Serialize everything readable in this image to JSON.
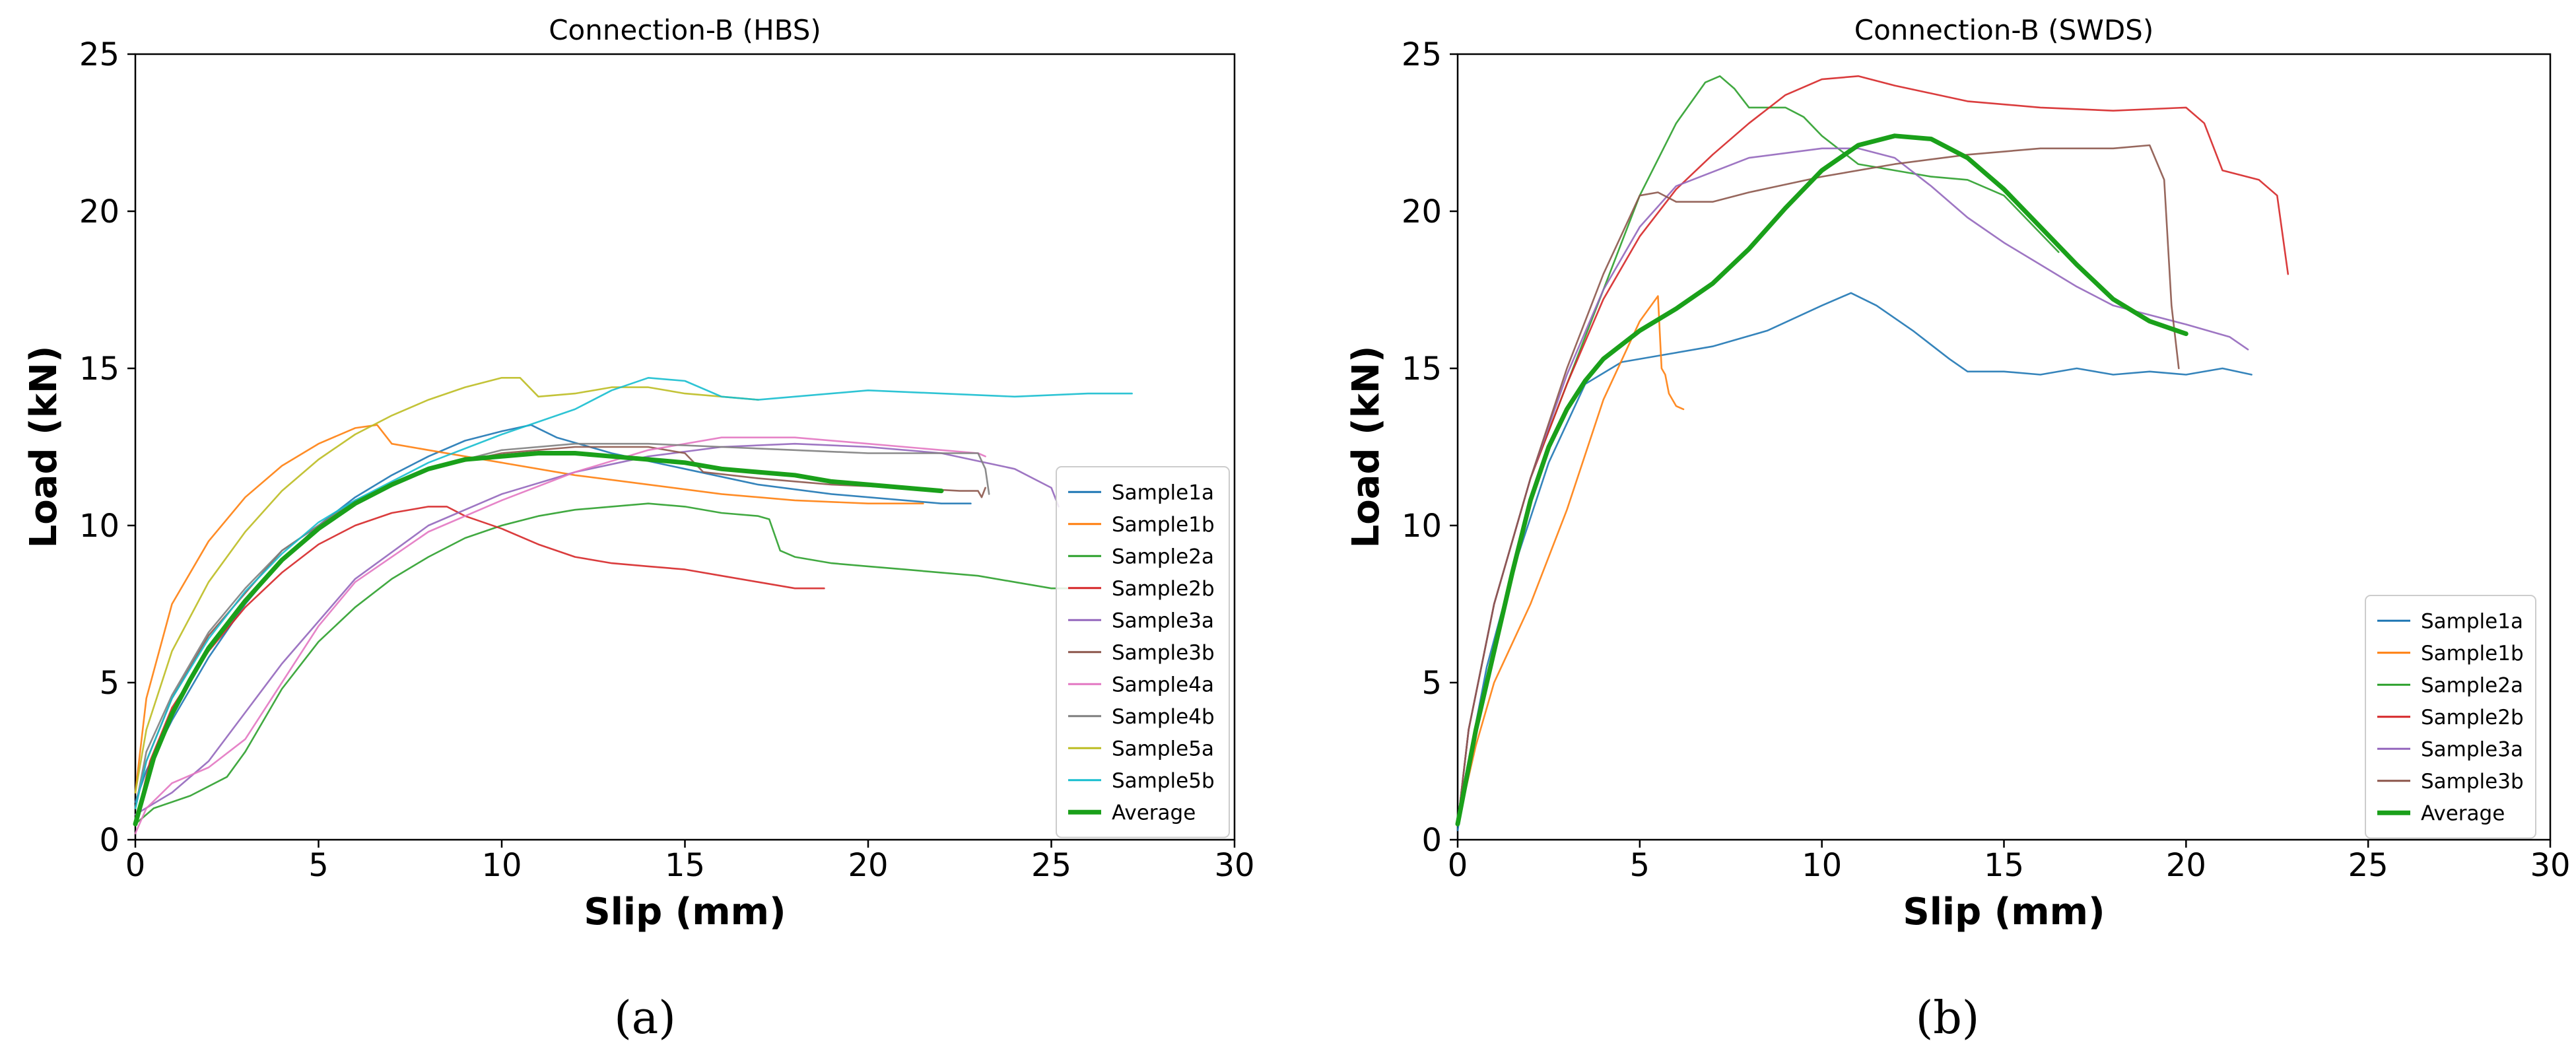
{
  "chart_data": [
    {
      "type": "line",
      "title": "Connection-B (HBS)",
      "xlabel": "Slip (mm)",
      "ylabel": "Load (kN)",
      "xlim": [
        0,
        30
      ],
      "ylim": [
        0,
        25
      ],
      "xticks": [
        "0",
        "5",
        "10",
        "15",
        "20",
        "25",
        "30"
      ],
      "yticks": [
        "0",
        "5",
        "10",
        "15",
        "20",
        "25"
      ],
      "grid": false,
      "legend_position": "right",
      "panel_label": "(a)",
      "series": [
        {
          "name": "Sample1a",
          "color": "#1f77b4",
          "x": [
            0,
            0.3,
            1,
            2,
            3,
            4,
            5,
            6,
            7,
            8,
            9,
            10,
            10.8,
            11.5,
            13,
            15,
            17,
            19,
            21,
            22,
            22.8
          ],
          "y": [
            1.2,
            2.2,
            3.8,
            5.8,
            7.5,
            8.9,
            10.0,
            10.9,
            11.6,
            12.2,
            12.7,
            13.0,
            13.2,
            12.8,
            12.3,
            11.8,
            11.3,
            11.0,
            10.8,
            10.7,
            10.7
          ]
        },
        {
          "name": "Sample1b",
          "color": "#ff7f0e",
          "x": [
            0,
            0.3,
            1,
            2,
            3,
            4,
            5,
            6,
            6.6,
            7.0,
            8,
            10,
            12,
            14,
            16,
            18,
            20,
            21.5
          ],
          "y": [
            1.5,
            4.5,
            7.5,
            9.5,
            10.9,
            11.9,
            12.6,
            13.1,
            13.2,
            12.6,
            12.4,
            12.0,
            11.6,
            11.3,
            11.0,
            10.8,
            10.7,
            10.7
          ]
        },
        {
          "name": "Sample2a",
          "color": "#2ca02c",
          "x": [
            0,
            0.5,
            1.5,
            2.5,
            3,
            4,
            5,
            6,
            7,
            8,
            9,
            10,
            11,
            12,
            13,
            14,
            15,
            16,
            17,
            17.3,
            17.6,
            18,
            19,
            20,
            21,
            22,
            23,
            24,
            25,
            25.5
          ],
          "y": [
            0.5,
            1.0,
            1.4,
            2.0,
            2.8,
            4.8,
            6.3,
            7.4,
            8.3,
            9.0,
            9.6,
            10.0,
            10.3,
            10.5,
            10.6,
            10.7,
            10.6,
            10.4,
            10.3,
            10.2,
            9.2,
            9.0,
            8.8,
            8.7,
            8.6,
            8.5,
            8.4,
            8.2,
            8.0,
            8.0
          ]
        },
        {
          "name": "Sample2b",
          "color": "#d62728",
          "x": [
            0,
            0.4,
            1,
            2,
            3,
            4,
            5,
            6,
            7,
            8,
            8.5,
            9,
            10,
            11,
            12,
            13,
            14,
            15,
            16,
            17,
            18,
            18.8
          ],
          "y": [
            0.5,
            2.5,
            4.2,
            6.0,
            7.4,
            8.5,
            9.4,
            10.0,
            10.4,
            10.6,
            10.6,
            10.3,
            9.9,
            9.4,
            9.0,
            8.8,
            8.7,
            8.6,
            8.4,
            8.2,
            8.0,
            8.0
          ]
        },
        {
          "name": "Sample3a",
          "color": "#9467bd",
          "x": [
            0,
            1,
            2,
            4,
            6,
            8,
            10,
            12,
            14,
            16,
            18,
            20,
            22,
            24,
            25,
            25.2
          ],
          "y": [
            0.8,
            1.5,
            2.5,
            5.6,
            8.3,
            10.0,
            11.0,
            11.7,
            12.2,
            12.5,
            12.6,
            12.5,
            12.3,
            11.8,
            11.2,
            10.6
          ]
        },
        {
          "name": "Sample3b",
          "color": "#8c564b",
          "x": [
            0,
            0.3,
            1,
            2,
            4,
            6,
            8,
            10,
            12,
            14,
            15,
            15.5,
            17,
            19,
            21,
            22.5,
            23,
            23.1,
            23.2
          ],
          "y": [
            1.0,
            2.5,
            4.5,
            6.5,
            9.2,
            10.8,
            11.8,
            12.3,
            12.5,
            12.5,
            12.3,
            11.7,
            11.5,
            11.3,
            11.2,
            11.1,
            11.1,
            10.9,
            11.2
          ]
        },
        {
          "name": "Sample4a",
          "color": "#e377c2",
          "x": [
            0,
            0.3,
            1,
            2,
            3,
            4,
            5,
            6,
            8,
            10,
            12,
            14,
            16,
            18,
            20,
            22,
            23,
            23.2
          ],
          "y": [
            0.2,
            1.0,
            1.8,
            2.3,
            3.2,
            5.0,
            6.8,
            8.2,
            9.8,
            10.8,
            11.7,
            12.4,
            12.8,
            12.8,
            12.6,
            12.4,
            12.3,
            12.2
          ]
        },
        {
          "name": "Sample4b",
          "color": "#7f7f7f",
          "x": [
            0,
            0.3,
            1,
            2,
            3,
            4,
            6,
            8,
            10,
            12,
            14,
            16,
            18,
            20,
            22,
            23,
            23.2,
            23.3
          ],
          "y": [
            1.0,
            2.8,
            4.6,
            6.6,
            8.0,
            9.2,
            10.8,
            11.8,
            12.4,
            12.6,
            12.6,
            12.5,
            12.4,
            12.3,
            12.3,
            12.3,
            11.8,
            11.0
          ]
        },
        {
          "name": "Sample5a",
          "color": "#bcbd22",
          "x": [
            0,
            0.3,
            1,
            2,
            3,
            4,
            5,
            6,
            7,
            8,
            9,
            10,
            10.5,
            11,
            12,
            13,
            14,
            15,
            16,
            17
          ],
          "y": [
            1.5,
            3.5,
            6.0,
            8.2,
            9.8,
            11.1,
            12.1,
            12.9,
            13.5,
            14.0,
            14.4,
            14.7,
            14.7,
            14.1,
            14.2,
            14.4,
            14.4,
            14.2,
            14.1,
            14.0
          ]
        },
        {
          "name": "Sample5b",
          "color": "#17becf",
          "x": [
            0,
            0.3,
            1,
            2,
            3,
            4,
            5,
            6,
            8,
            10,
            12,
            13,
            14,
            15,
            16,
            17,
            18,
            20,
            22,
            24,
            26,
            27.2
          ],
          "y": [
            1.0,
            2.5,
            4.5,
            6.4,
            7.9,
            9.1,
            10.1,
            10.8,
            12.0,
            12.9,
            13.7,
            14.3,
            14.7,
            14.6,
            14.1,
            14.0,
            14.1,
            14.3,
            14.2,
            14.1,
            14.2,
            14.2
          ]
        },
        {
          "name": "Average",
          "color": "#1aa01a",
          "bold": true,
          "x": [
            0,
            0.5,
            1,
            1.5,
            2,
            3,
            4,
            5,
            6,
            7,
            8,
            9,
            10,
            11,
            12,
            13,
            14,
            15,
            16,
            17,
            18,
            19,
            20,
            21,
            22
          ],
          "y": [
            0.5,
            2.6,
            4.0,
            5.1,
            6.1,
            7.6,
            8.9,
            9.9,
            10.7,
            11.3,
            11.8,
            12.1,
            12.2,
            12.3,
            12.3,
            12.2,
            12.1,
            12.0,
            11.8,
            11.7,
            11.6,
            11.4,
            11.3,
            11.2,
            11.1
          ]
        }
      ]
    },
    {
      "type": "line",
      "title": "Connection-B (SWDS)",
      "xlabel": "Slip (mm)",
      "ylabel": "Load (kN)",
      "xlim": [
        0,
        30
      ],
      "ylim": [
        0,
        25
      ],
      "xticks": [
        "0",
        "5",
        "10",
        "15",
        "20",
        "25",
        "30"
      ],
      "yticks": [
        "0",
        "5",
        "10",
        "15",
        "20",
        "25"
      ],
      "grid": false,
      "legend_position": "lower right",
      "panel_label": "(b)",
      "series": [
        {
          "name": "Sample1a",
          "color": "#1f77b4",
          "x": [
            0,
            0.3,
            0.8,
            1.5,
            2.5,
            3.5,
            4.5,
            5.5,
            7,
            8.5,
            10,
            10.8,
            11.5,
            12.5,
            13.5,
            14,
            15,
            16,
            17,
            18,
            19,
            20,
            21,
            21.8
          ],
          "y": [
            0.3,
            2.5,
            5.5,
            8.5,
            12.0,
            14.5,
            15.2,
            15.4,
            15.7,
            16.2,
            17.0,
            17.4,
            17.0,
            16.2,
            15.3,
            14.9,
            14.9,
            14.8,
            15.0,
            14.8,
            14.9,
            14.8,
            15.0,
            14.8
          ]
        },
        {
          "name": "Sample1b",
          "color": "#ff7f0e",
          "x": [
            0,
            0.5,
            1,
            2,
            3,
            4,
            5,
            5.5,
            5.6,
            5.7,
            5.8,
            6.0,
            6.2
          ],
          "y": [
            0.5,
            3.0,
            5.0,
            7.5,
            10.5,
            14.0,
            16.5,
            17.3,
            15.0,
            14.8,
            14.2,
            13.8,
            13.7
          ]
        },
        {
          "name": "Sample2a",
          "color": "#2ca02c",
          "x": [
            0,
            0.3,
            1,
            2,
            3,
            4,
            5,
            6,
            6.8,
            7.2,
            7.6,
            8,
            9,
            9.5,
            10,
            11,
            12,
            13,
            14,
            15,
            16,
            16.5
          ],
          "y": [
            0.5,
            3.5,
            7.5,
            11.5,
            14.5,
            17.5,
            20.5,
            22.8,
            24.1,
            24.3,
            23.9,
            23.3,
            23.3,
            23.0,
            22.4,
            21.5,
            21.3,
            21.1,
            21.0,
            20.5,
            19.3,
            18.7
          ]
        },
        {
          "name": "Sample2b",
          "color": "#d62728",
          "x": [
            0,
            0.3,
            1,
            2,
            3,
            4,
            5,
            6,
            7,
            8,
            9,
            10,
            11,
            12,
            14,
            16,
            18,
            20,
            20.5,
            21,
            22,
            22.5,
            22.8
          ],
          "y": [
            0.5,
            3.5,
            7.5,
            11.5,
            14.5,
            17.2,
            19.2,
            20.7,
            21.8,
            22.8,
            23.7,
            24.2,
            24.3,
            24.0,
            23.5,
            23.3,
            23.2,
            23.3,
            22.8,
            21.3,
            21.0,
            20.5,
            18.0
          ]
        },
        {
          "name": "Sample3a",
          "color": "#9467bd",
          "x": [
            0,
            0.3,
            1,
            2,
            3,
            4,
            5,
            6,
            8,
            10,
            11,
            12,
            13,
            14,
            15,
            16,
            17,
            18,
            20,
            21.2,
            21.7
          ],
          "y": [
            0.5,
            3.5,
            7.5,
            11.5,
            14.8,
            17.5,
            19.5,
            20.8,
            21.7,
            22.0,
            22.0,
            21.7,
            20.8,
            19.8,
            19.0,
            18.3,
            17.6,
            17.0,
            16.4,
            16.0,
            15.6
          ]
        },
        {
          "name": "Sample3b",
          "color": "#8c564b",
          "x": [
            0,
            0.3,
            1,
            2,
            3,
            4,
            5,
            5.5,
            6,
            7,
            8,
            10,
            12,
            14,
            16,
            18,
            19,
            19.4,
            19.6,
            19.8
          ],
          "y": [
            0.5,
            3.5,
            7.5,
            11.5,
            15.0,
            18.0,
            20.5,
            20.6,
            20.3,
            20.3,
            20.6,
            21.1,
            21.5,
            21.8,
            22.0,
            22.0,
            22.1,
            21.0,
            17.0,
            15.0
          ]
        },
        {
          "name": "Average",
          "color": "#1aa01a",
          "bold": true,
          "x": [
            0,
            0.5,
            1,
            1.5,
            2,
            2.5,
            3,
            3.5,
            4,
            5,
            6,
            7,
            8,
            9,
            10,
            11,
            12,
            13,
            14,
            15,
            16,
            17,
            18,
            19,
            20
          ],
          "y": [
            0.5,
            3.5,
            6.0,
            8.5,
            10.8,
            12.5,
            13.7,
            14.6,
            15.3,
            16.2,
            16.9,
            17.7,
            18.8,
            20.1,
            21.3,
            22.1,
            22.4,
            22.3,
            21.7,
            20.7,
            19.5,
            18.3,
            17.2,
            16.5,
            16.1
          ]
        }
      ]
    }
  ]
}
